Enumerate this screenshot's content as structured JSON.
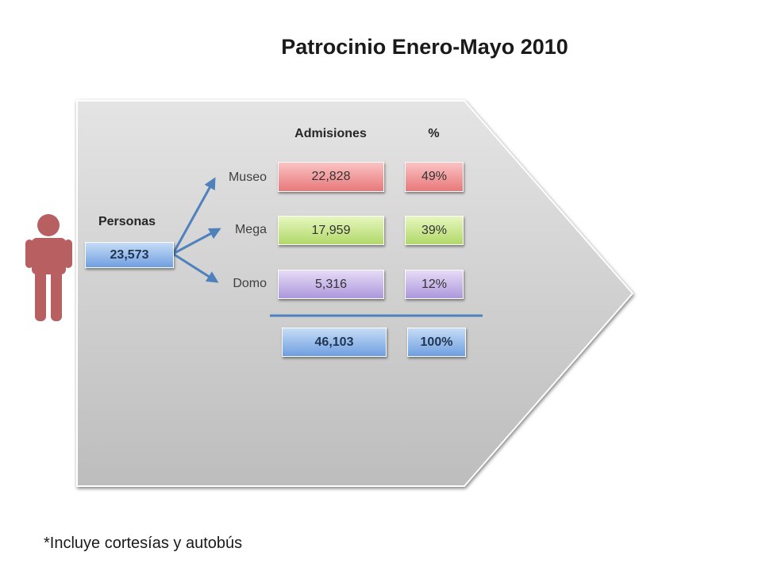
{
  "title": "Patrocinio Enero-Mayo 2010",
  "persons": {
    "label": "Personas",
    "value": "23,573"
  },
  "headers": {
    "admissions": "Admisiones",
    "percent": "%"
  },
  "rows": [
    {
      "label": "Museo",
      "admissions": "22,828",
      "percent": "49%"
    },
    {
      "label": "Mega",
      "admissions": "17,959",
      "percent": "39%"
    },
    {
      "label": "Domo",
      "admissions": "5,316",
      "percent": "12%"
    }
  ],
  "total": {
    "admissions": "46,103",
    "percent": "100%"
  },
  "footnote": "*Incluye cortesías y autobús"
}
